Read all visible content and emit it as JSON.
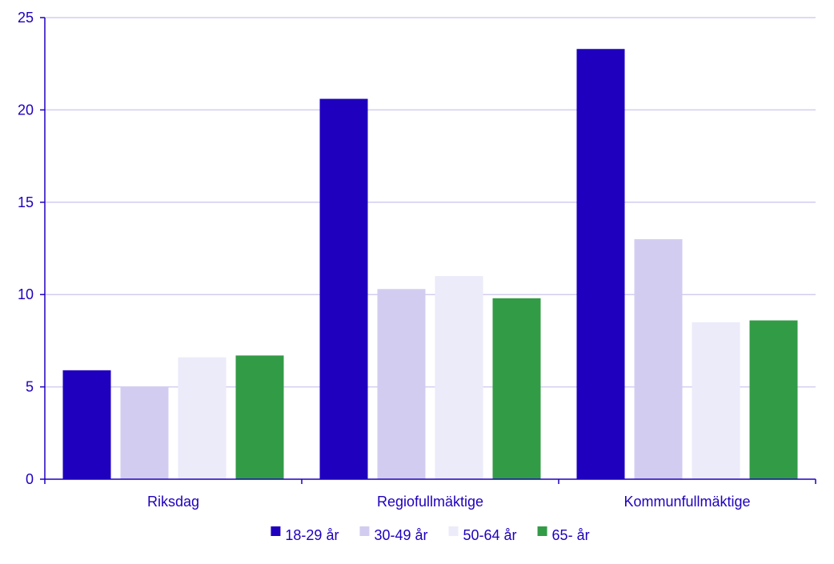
{
  "chart_data": {
    "type": "bar",
    "title": "",
    "xlabel": "",
    "ylabel": "",
    "categories": [
      "Riksdag",
      "Regiofullmäktige",
      "Kommunfullmäktige"
    ],
    "series": [
      {
        "name": "18-29 år",
        "values": [
          5.9,
          20.6,
          23.3
        ],
        "color": "#1e00be"
      },
      {
        "name": "30-49 år",
        "values": [
          5.0,
          10.3,
          13.0
        ],
        "color": "#d2cdf0"
      },
      {
        "name": "50-64 år",
        "values": [
          6.6,
          11.0,
          8.5
        ],
        "color": "#ebebfa"
      },
      {
        "name": "65- år",
        "values": [
          6.7,
          9.8,
          8.6
        ],
        "color": "#329b46"
      }
    ],
    "ylim": [
      0,
      25
    ],
    "yticks": [
      0,
      5,
      10,
      15,
      20,
      25
    ],
    "grid": true,
    "legend_position": "bottom",
    "axis_color": "#1e00be",
    "grid_color": "#d2cdf0",
    "text_color": "#1e00be"
  }
}
